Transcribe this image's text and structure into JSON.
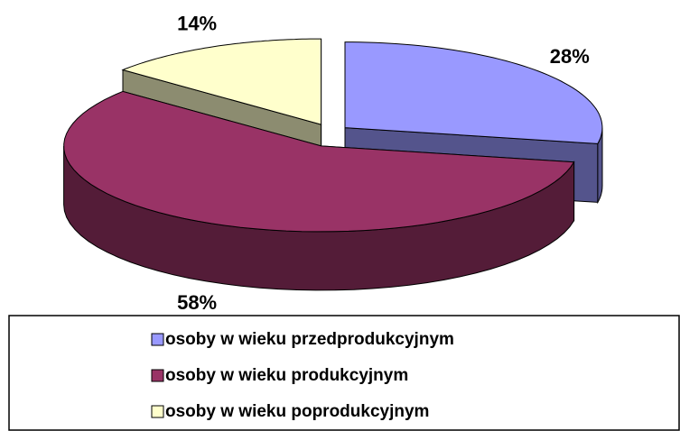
{
  "chart_data": {
    "type": "pie3d",
    "categories": [
      "osoby w wieku przedprodukcyjnym",
      "osoby w wieku produkcyjnym",
      "osoby w wieku poprodukcyjnym"
    ],
    "values": [
      28,
      58,
      14
    ],
    "value_labels": [
      "28%",
      "58%",
      "14%"
    ],
    "colors": [
      "#9999ff",
      "#993366",
      "#ffffcc"
    ],
    "legend": "bottom"
  }
}
